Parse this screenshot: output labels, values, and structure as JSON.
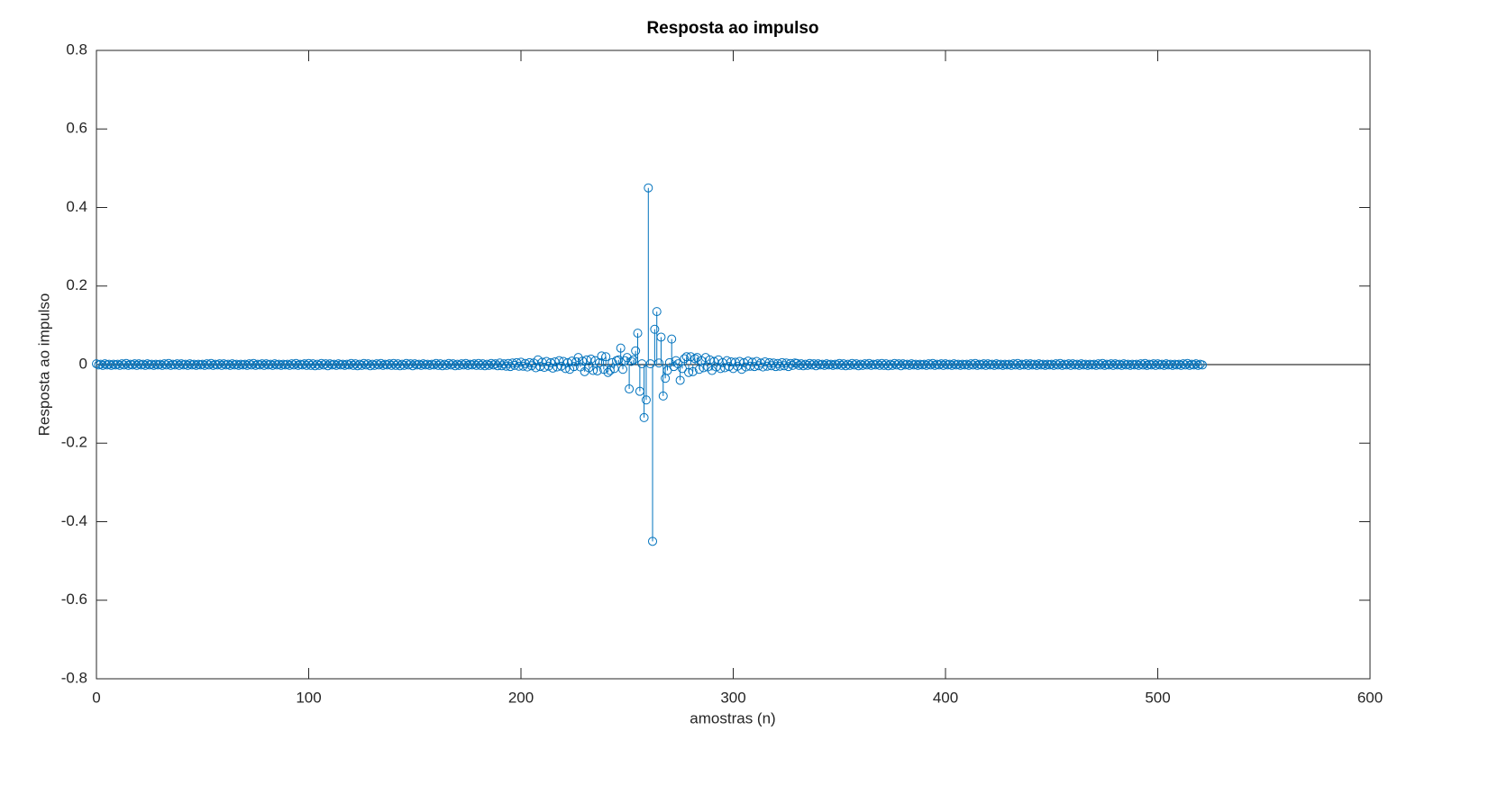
{
  "chart_data": {
    "type": "stem",
    "title": "Resposta ao impulso",
    "xlabel": "amostras (n)",
    "ylabel": "Resposta ao impulso",
    "xlim": [
      0,
      600
    ],
    "xticks": [
      0,
      100,
      200,
      300,
      400,
      500,
      600
    ],
    "ylim": [
      -0.8,
      0.8
    ],
    "yticks": [
      -0.8,
      -0.6,
      -0.4,
      -0.2,
      0,
      0.2,
      0.4,
      0.6,
      0.8
    ],
    "grid": false,
    "color": "#0072bd",
    "x": [
      0,
      1,
      2,
      3,
      4,
      5,
      6,
      7,
      8,
      9,
      10,
      11,
      12,
      13,
      14,
      15,
      16,
      17,
      18,
      19,
      20,
      21,
      22,
      23,
      24,
      25,
      26,
      27,
      28,
      29,
      30,
      31,
      32,
      33,
      34,
      35,
      36,
      37,
      38,
      39,
      40,
      41,
      42,
      43,
      44,
      45,
      46,
      47,
      48,
      49,
      50,
      51,
      52,
      53,
      54,
      55,
      56,
      57,
      58,
      59,
      60,
      61,
      62,
      63,
      64,
      65,
      66,
      67,
      68,
      69,
      70,
      71,
      72,
      73,
      74,
      75,
      76,
      77,
      78,
      79,
      80,
      81,
      82,
      83,
      84,
      85,
      86,
      87,
      88,
      89,
      90,
      91,
      92,
      93,
      94,
      95,
      96,
      97,
      98,
      99,
      100,
      101,
      102,
      103,
      104,
      105,
      106,
      107,
      108,
      109,
      110,
      111,
      112,
      113,
      114,
      115,
      116,
      117,
      118,
      119,
      120,
      121,
      122,
      123,
      124,
      125,
      126,
      127,
      128,
      129,
      130,
      131,
      132,
      133,
      134,
      135,
      136,
      137,
      138,
      139,
      140,
      141,
      142,
      143,
      144,
      145,
      146,
      147,
      148,
      149,
      150,
      151,
      152,
      153,
      154,
      155,
      156,
      157,
      158,
      159,
      160,
      161,
      162,
      163,
      164,
      165,
      166,
      167,
      168,
      169,
      170,
      171,
      172,
      173,
      174,
      175,
      176,
      177,
      178,
      179,
      180,
      181,
      182,
      183,
      184,
      185,
      186,
      187,
      188,
      189,
      190,
      191,
      192,
      193,
      194,
      195,
      196,
      197,
      198,
      199,
      200,
      201,
      202,
      203,
      204,
      205,
      206,
      207,
      208,
      209,
      210,
      211,
      212,
      213,
      214,
      215,
      216,
      217,
      218,
      219,
      220,
      221,
      222,
      223,
      224,
      225,
      226,
      227,
      228,
      229,
      230,
      231,
      232,
      233,
      234,
      235,
      236,
      237,
      238,
      239,
      240,
      241,
      242,
      243,
      244,
      245,
      246,
      247,
      248,
      249,
      250,
      251,
      252,
      253,
      254,
      255,
      256,
      257,
      258,
      259,
      260,
      261,
      262,
      263,
      264,
      265,
      266,
      267,
      268,
      269,
      270,
      271,
      272,
      273,
      274,
      275,
      276,
      277,
      278,
      279,
      280,
      281,
      282,
      283,
      284,
      285,
      286,
      287,
      288,
      289,
      290,
      291,
      292,
      293,
      294,
      295,
      296,
      297,
      298,
      299,
      300,
      301,
      302,
      303,
      304,
      305,
      306,
      307,
      308,
      309,
      310,
      311,
      312,
      313,
      314,
      315,
      316,
      317,
      318,
      319,
      320,
      321,
      322,
      323,
      324,
      325,
      326,
      327,
      328,
      329,
      330,
      331,
      332,
      333,
      334,
      335,
      336,
      337,
      338,
      339,
      340,
      341,
      342,
      343,
      344,
      345,
      346,
      347,
      348,
      349,
      350,
      351,
      352,
      353,
      354,
      355,
      356,
      357,
      358,
      359,
      360,
      361,
      362,
      363,
      364,
      365,
      366,
      367,
      368,
      369,
      370,
      371,
      372,
      373,
      374,
      375,
      376,
      377,
      378,
      379,
      380,
      381,
      382,
      383,
      384,
      385,
      386,
      387,
      388,
      389,
      390,
      391,
      392,
      393,
      394,
      395,
      396,
      397,
      398,
      399,
      400,
      401,
      402,
      403,
      404,
      405,
      406,
      407,
      408,
      409,
      410,
      411,
      412,
      413,
      414,
      415,
      416,
      417,
      418,
      419,
      420,
      421,
      422,
      423,
      424,
      425,
      426,
      427,
      428,
      429,
      430,
      431,
      432,
      433,
      434,
      435,
      436,
      437,
      438,
      439,
      440,
      441,
      442,
      443,
      444,
      445,
      446,
      447,
      448,
      449,
      450,
      451,
      452,
      453,
      454,
      455,
      456,
      457,
      458,
      459,
      460,
      461,
      462,
      463,
      464,
      465,
      466,
      467,
      468,
      469,
      470,
      471,
      472,
      473,
      474,
      475,
      476,
      477,
      478,
      479,
      480,
      481,
      482,
      483,
      484,
      485,
      486,
      487,
      488,
      489,
      490,
      491,
      492,
      493,
      494,
      495,
      496,
      497,
      498,
      499,
      500,
      501,
      502,
      503,
      504,
      505,
      506,
      507,
      508,
      509,
      510,
      511,
      512,
      513,
      514,
      515,
      516,
      517,
      518,
      519,
      520,
      521
    ],
    "values": [
      0.002,
      -0.001,
      0.001,
      -0.002,
      0.002,
      -0.001,
      0.001,
      -0.002,
      0.001,
      -0.001,
      0.001,
      -0.002,
      0.002,
      -0.001,
      0.003,
      -0.002,
      0.001,
      -0.001,
      0.002,
      -0.002,
      0.002,
      -0.001,
      0.001,
      -0.002,
      0.002,
      -0.001,
      0.001,
      -0.002,
      0.001,
      -0.001,
      0.001,
      -0.002,
      0.002,
      -0.001,
      0.003,
      -0.002,
      0.001,
      -0.001,
      0.002,
      -0.002,
      0.002,
      -0.001,
      0.001,
      -0.002,
      0.002,
      -0.001,
      0.001,
      -0.002,
      0.001,
      -0.001,
      0.001,
      -0.002,
      0.002,
      -0.001,
      0.003,
      -0.002,
      0.001,
      -0.001,
      0.002,
      -0.002,
      0.002,
      -0.001,
      0.001,
      -0.002,
      0.002,
      -0.001,
      0.001,
      -0.002,
      0.001,
      -0.001,
      0.001,
      -0.002,
      0.002,
      -0.001,
      0.003,
      -0.002,
      0.001,
      -0.001,
      0.002,
      -0.002,
      0.002,
      -0.001,
      0.001,
      -0.002,
      0.002,
      -0.001,
      0.001,
      -0.002,
      0.001,
      -0.001,
      0.001,
      -0.002,
      0.002,
      -0.001,
      0.003,
      -0.002,
      0.001,
      -0.001,
      0.002,
      -0.002,
      0.003,
      -0.002,
      0.002,
      -0.003,
      0.001,
      -0.002,
      0.003,
      -0.001,
      0.002,
      -0.003,
      0.002,
      -0.001,
      0.001,
      -0.002,
      0.002,
      -0.001,
      0.001,
      -0.002,
      0.001,
      -0.001,
      0.003,
      -0.002,
      0.002,
      -0.003,
      0.001,
      -0.002,
      0.003,
      -0.001,
      0.002,
      -0.003,
      0.001,
      -0.002,
      0.002,
      -0.001,
      0.003,
      -0.002,
      0.001,
      -0.001,
      0.002,
      -0.002,
      0.003,
      -0.002,
      0.002,
      -0.003,
      0.001,
      -0.002,
      0.003,
      -0.001,
      0.002,
      -0.003,
      0.002,
      -0.001,
      0.001,
      -0.002,
      0.002,
      -0.001,
      0.001,
      -0.002,
      0.001,
      -0.001,
      0.003,
      -0.002,
      0.002,
      -0.003,
      0.001,
      -0.002,
      0.003,
      -0.001,
      0.002,
      -0.003,
      0.001,
      -0.002,
      0.002,
      -0.001,
      0.003,
      -0.002,
      0.001,
      -0.001,
      0.002,
      -0.002,
      0.003,
      -0.002,
      0.002,
      -0.003,
      0.001,
      -0.002,
      0.003,
      -0.001,
      0.002,
      -0.003,
      0.004,
      -0.003,
      0.002,
      -0.004,
      0.003,
      -0.005,
      0.004,
      -0.002,
      0.005,
      -0.004,
      0.006,
      -0.004,
      0.003,
      -0.006,
      0.005,
      -0.003,
      0.004,
      -0.008,
      0.012,
      -0.005,
      0.006,
      -0.007,
      0.008,
      -0.004,
      0.005,
      -0.009,
      0.007,
      -0.006,
      0.01,
      -0.004,
      0.008,
      -0.01,
      0.005,
      -0.012,
      0.009,
      -0.005,
      0.007,
      0.018,
      -0.006,
      0.009,
      -0.018,
      0.012,
      -0.008,
      0.014,
      -0.015,
      0.01,
      -0.016,
      0.005,
      0.022,
      -0.012,
      0.02,
      -0.02,
      -0.015,
      0.005,
      -0.01,
      0.01,
      0.012,
      0.042,
      -0.012,
      0.01,
      0.018,
      -0.062,
      0.008,
      0.012,
      0.035,
      0.08,
      -0.068,
      0.002,
      -0.135,
      -0.09,
      0.45,
      0.002,
      -0.45,
      0.09,
      0.135,
      0.004,
      0.07,
      -0.08,
      -0.035,
      -0.015,
      0.005,
      0.065,
      -0.005,
      0.01,
      0.002,
      -0.04,
      -0.01,
      0.015,
      0.02,
      -0.02,
      0.02,
      -0.018,
      0.015,
      0.018,
      -0.012,
      0.01,
      -0.008,
      0.018,
      -0.006,
      0.012,
      -0.015,
      0.008,
      -0.006,
      0.012,
      -0.01,
      0.005,
      -0.008,
      0.01,
      -0.005,
      0.007,
      -0.01,
      0.006,
      -0.004,
      0.008,
      -0.012,
      0.005,
      -0.006,
      0.009,
      -0.004,
      0.006,
      -0.005,
      0.008,
      -0.003,
      0.004,
      -0.006,
      0.007,
      -0.004,
      0.005,
      -0.003,
      0.004,
      -0.005,
      0.003,
      -0.004,
      0.005,
      -0.003,
      0.004,
      -0.005,
      0.003,
      -0.002,
      0.004,
      0.003,
      -0.002,
      0.002,
      -0.003,
      0.001,
      -0.002,
      0.003,
      -0.001,
      0.002,
      -0.003,
      0.002,
      -0.001,
      0.001,
      -0.002,
      0.002,
      -0.001,
      0.001,
      -0.002,
      0.001,
      -0.001,
      0.003,
      -0.002,
      0.002,
      -0.003,
      0.001,
      -0.002,
      0.003,
      -0.001,
      0.002,
      -0.003,
      0.001,
      -0.002,
      0.002,
      -0.001,
      0.003,
      -0.002,
      0.001,
      -0.001,
      0.002,
      -0.002,
      0.003,
      -0.002,
      0.002,
      -0.003,
      0.001,
      -0.002,
      0.003,
      -0.001,
      0.002,
      -0.003,
      0.002,
      -0.001,
      0.001,
      -0.002,
      0.002,
      -0.001,
      0.001,
      -0.002,
      0.001,
      -0.001,
      0.001,
      -0.002,
      0.002,
      -0.001,
      0.003,
      -0.002,
      0.001,
      -0.001,
      0.002,
      -0.002,
      0.002,
      -0.001,
      0.001,
      -0.002,
      0.002,
      -0.001,
      0.001,
      -0.002,
      0.001,
      -0.001,
      0.001,
      -0.002,
      0.002,
      -0.001,
      0.003,
      -0.002,
      0.001,
      -0.001,
      0.002,
      -0.002,
      0.002,
      -0.001,
      0.001,
      -0.002,
      0.002,
      -0.001,
      0.001,
      -0.002,
      0.001,
      -0.001,
      0.001,
      -0.002,
      0.002,
      -0.001,
      0.003,
      -0.002,
      0.001,
      -0.001,
      0.002,
      -0.002,
      0.002,
      -0.001,
      0.001,
      -0.002,
      0.002,
      -0.001,
      0.001,
      -0.002,
      0.001,
      -0.001,
      0.001,
      -0.002,
      0.002,
      -0.001,
      0.003,
      -0.002,
      0.001,
      -0.001,
      0.002,
      -0.002,
      0.002,
      -0.001,
      0.001,
      -0.002,
      0.002,
      -0.001,
      0.001,
      -0.002,
      0.001,
      -0.001,
      0.001,
      -0.002,
      0.002,
      -0.001,
      0.003,
      -0.002,
      0.001,
      -0.001,
      0.002,
      -0.002,
      0.002,
      -0.001,
      0.001,
      -0.002,
      0.002,
      -0.001,
      0.001,
      -0.002,
      0.001,
      -0.001,
      0.001,
      -0.002,
      0.002,
      -0.001,
      0.003,
      -0.002,
      0.001,
      -0.001,
      0.002,
      -0.002,
      0.002,
      -0.001,
      0.001,
      -0.002,
      0.002,
      -0.001,
      0.001,
      -0.002,
      0.001,
      -0.001,
      0.001,
      -0.002,
      0.002,
      -0.001,
      0.003,
      -0.002,
      0.001,
      -0.001,
      0.002,
      -0.002,
      0.001,
      -0.001
    ]
  }
}
